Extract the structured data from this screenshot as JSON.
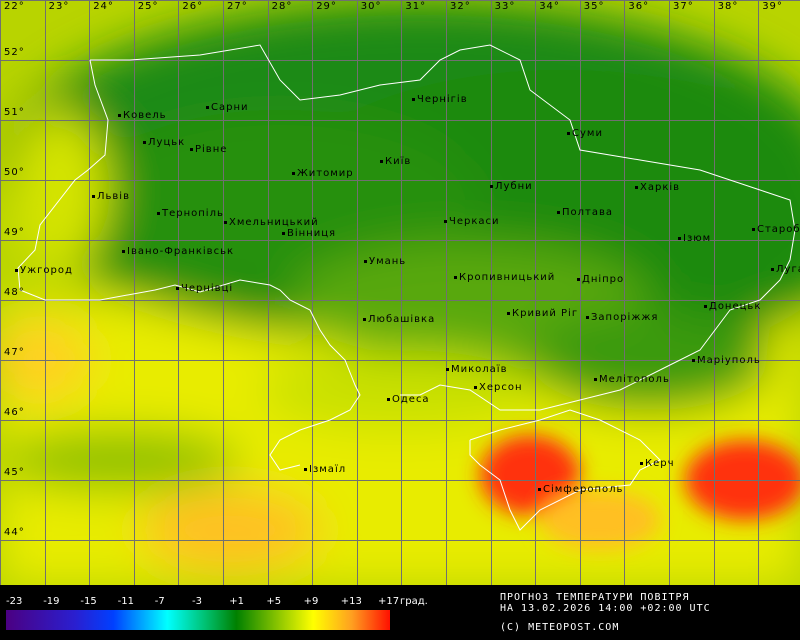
{
  "map": {
    "longitudes": [
      "22°",
      "23°",
      "24°",
      "25°",
      "26°",
      "27°",
      "28°",
      "29°",
      "30°",
      "31°",
      "32°",
      "33°",
      "34°",
      "35°",
      "36°",
      "37°",
      "38°",
      "39°"
    ],
    "latitudes": [
      "52°",
      "51°",
      "50°",
      "49°",
      "48°",
      "47°",
      "46°",
      "45°",
      "44°"
    ],
    "cities": [
      "Ковель",
      "Сарни",
      "Луцьк",
      "Рівне",
      "Житомир",
      "Київ",
      "Чернігів",
      "Суми",
      "Львів",
      "Тернопіль",
      "Хмельницький",
      "Вінниця",
      "Івано-Франківськ",
      "Ужгород",
      "Чернівці",
      "Умань",
      "Черкаси",
      "Лубни",
      "Полтава",
      "Харків",
      "Ізюм",
      "Старобільськ",
      "Луганськ",
      "Кропивницький",
      "Дніпро",
      "Кривий Ріг",
      "Запоріжжя",
      "Донецьк",
      "Любашівка",
      "Миколаїв",
      "Маріуполь",
      "Мелітополь",
      "Херсон",
      "Одеса",
      "Ізмаїл",
      "Керч",
      "Сімферополь"
    ]
  },
  "legend": {
    "ticks": [
      "-23",
      "-19",
      "-15",
      "-11",
      "-7",
      "-3",
      "+1",
      "+5",
      "+9",
      "+13",
      "+17"
    ],
    "unit": "град.",
    "title": "ПРОГНОЗ ТЕМПЕРАТУРИ ПОВІТРЯ",
    "datetime": "НА 13.02.2026 14:00 +02:00 UTC",
    "copyright": "(C) METEOPOST.COM",
    "colors": [
      "#4b0082",
      "#0040ff",
      "#00ffff",
      "#008000",
      "#ffff00",
      "#ff1000"
    ]
  }
}
